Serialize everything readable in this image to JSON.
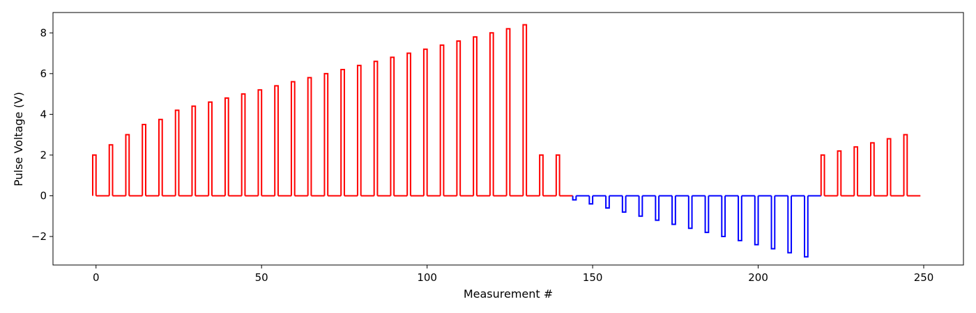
{
  "chart_data": {
    "type": "line",
    "title": "",
    "xlabel": "Measurement #",
    "ylabel": "Pulse Voltage (V)",
    "xlim": [
      -13,
      262
    ],
    "ylim": [
      -3.4,
      9.0
    ],
    "x_ticks": [
      0,
      50,
      100,
      150,
      200,
      250
    ],
    "y_ticks": [
      -2,
      0,
      2,
      4,
      6,
      8
    ],
    "x_tick_labels": [
      "0",
      "50",
      "100",
      "150",
      "200",
      "250"
    ],
    "y_tick_labels": [
      "−2",
      "0",
      "2",
      "4",
      "6",
      "8"
    ],
    "grid": false,
    "legend": "none",
    "pulse_width": 1,
    "baseline": 0,
    "x_end": 249,
    "series": [
      {
        "color": "#ff0000",
        "pulses": [
          {
            "x": -1,
            "v": 2.0
          },
          {
            "x": 4,
            "v": 2.5
          },
          {
            "x": 9,
            "v": 3.0
          },
          {
            "x": 14,
            "v": 3.5
          },
          {
            "x": 19,
            "v": 3.75
          },
          {
            "x": 24,
            "v": 4.2
          },
          {
            "x": 29,
            "v": 4.4
          },
          {
            "x": 34,
            "v": 4.6
          },
          {
            "x": 39,
            "v": 4.8
          },
          {
            "x": 44,
            "v": 5.0
          },
          {
            "x": 49,
            "v": 5.2
          },
          {
            "x": 54,
            "v": 5.4
          },
          {
            "x": 59,
            "v": 5.6
          },
          {
            "x": 64,
            "v": 5.8
          },
          {
            "x": 69,
            "v": 6.0
          },
          {
            "x": 74,
            "v": 6.2
          },
          {
            "x": 79,
            "v": 6.4
          },
          {
            "x": 84,
            "v": 6.6
          },
          {
            "x": 89,
            "v": 6.8
          },
          {
            "x": 94,
            "v": 7.0
          },
          {
            "x": 99,
            "v": 7.2
          },
          {
            "x": 104,
            "v": 7.4
          },
          {
            "x": 109,
            "v": 7.6
          },
          {
            "x": 114,
            "v": 7.8
          },
          {
            "x": 119,
            "v": 8.0
          },
          {
            "x": 124,
            "v": 8.2
          },
          {
            "x": 129,
            "v": 8.4
          },
          {
            "x": 134,
            "v": 2.0
          },
          {
            "x": 139,
            "v": 2.0
          }
        ],
        "x_from": -1,
        "x_to": 144
      },
      {
        "color": "#0000ff",
        "pulses": [
          {
            "x": 144,
            "v": -0.2
          },
          {
            "x": 149,
            "v": -0.4
          },
          {
            "x": 154,
            "v": -0.6
          },
          {
            "x": 159,
            "v": -0.8
          },
          {
            "x": 164,
            "v": -1.0
          },
          {
            "x": 169,
            "v": -1.2
          },
          {
            "x": 174,
            "v": -1.4
          },
          {
            "x": 179,
            "v": -1.6
          },
          {
            "x": 184,
            "v": -1.8
          },
          {
            "x": 189,
            "v": -2.0
          },
          {
            "x": 194,
            "v": -2.2
          },
          {
            "x": 199,
            "v": -2.4
          },
          {
            "x": 204,
            "v": -2.6
          },
          {
            "x": 209,
            "v": -2.8
          },
          {
            "x": 214,
            "v": -3.0
          }
        ],
        "x_from": 144,
        "x_to": 219
      },
      {
        "color": "#ff0000",
        "pulses": [
          {
            "x": 219,
            "v": 2.0
          },
          {
            "x": 224,
            "v": 2.2
          },
          {
            "x": 229,
            "v": 2.4
          },
          {
            "x": 234,
            "v": 2.6
          },
          {
            "x": 239,
            "v": 2.8
          },
          {
            "x": 244,
            "v": 3.0
          }
        ],
        "x_from": 219,
        "x_to": 249
      }
    ]
  }
}
